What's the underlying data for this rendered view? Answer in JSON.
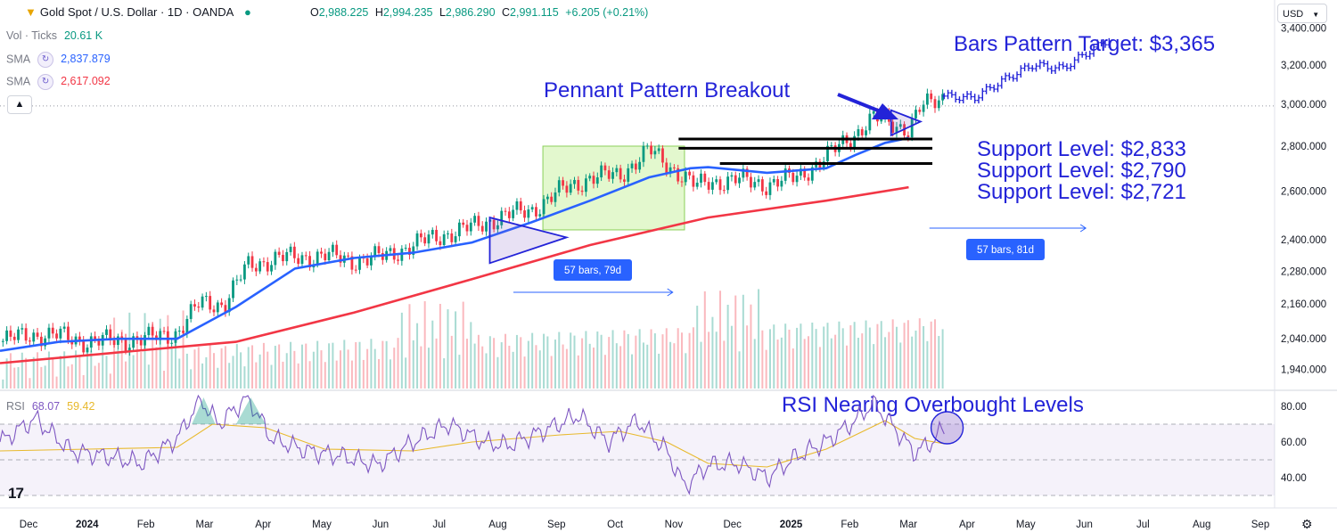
{
  "header": {
    "symbol": "Gold Spot / U.S. Dollar · 1D · OANDA",
    "open_label": "O",
    "open": "2,988.225",
    "high_label": "H",
    "high": "2,994.235",
    "low_label": "L",
    "low": "2,986.290",
    "close_label": "C",
    "close": "2,991.115",
    "change": "+6.205 (+0.21%)"
  },
  "indicators": {
    "vol_label": "Vol · Ticks",
    "vol_value": "20.61 K",
    "sma1_label": "SMA",
    "sma1_value": "2,837.879",
    "sma2_label": "SMA",
    "sma2_value": "2,617.092",
    "rsi_label": "RSI",
    "rsi_value": "68.07",
    "rsi_ma_value": "59.42"
  },
  "currency": "USD",
  "colors": {
    "up": "#089981",
    "down": "#f23645",
    "sma_fast": "#2962ff",
    "sma_slow": "#f23645",
    "annotation": "#2323d8",
    "rsi": "#7e57c2",
    "rsi_ma": "#e8b92c",
    "box": "#ccf2a6"
  },
  "chart_data": [
    {
      "type": "line",
      "title": "Gold Spot / U.S. Dollar · 1D · OANDA",
      "x_ticks": [
        "Dec",
        "2024",
        "Feb",
        "Mar",
        "Apr",
        "May",
        "Jun",
        "Jul",
        "Aug",
        "Sep",
        "Oct",
        "Nov",
        "Dec",
        "2025",
        "Feb",
        "Mar",
        "Apr",
        "May",
        "Jun",
        "Jul",
        "Aug",
        "Sep"
      ],
      "y_ticks": [
        "3,400.000",
        "3,200.000",
        "3,000.000",
        "2,800.000",
        "2,600.000",
        "2,400.000",
        "2,280.000",
        "2,160.000",
        "2,040.000",
        "1,940.000"
      ],
      "y_tick_values": [
        3400,
        3200,
        3000,
        2800,
        2600,
        2400,
        2280,
        2160,
        2040,
        1940
      ],
      "scale": "log",
      "ylim": [
        1880,
        3560
      ],
      "x_range": [
        0,
        21.6
      ],
      "price_path": [
        [
          0,
          2030
        ],
        [
          0.5,
          2055
        ],
        [
          1.0,
          2050
        ],
        [
          1.5,
          2030
        ],
        [
          2.0,
          2035
        ],
        [
          2.5,
          2040
        ],
        [
          3.0,
          2060
        ],
        [
          3.4,
          2165
        ],
        [
          3.8,
          2160
        ],
        [
          4.2,
          2300
        ],
        [
          4.7,
          2330
        ],
        [
          5.0,
          2330
        ],
        [
          5.5,
          2340
        ],
        [
          6.0,
          2320
        ],
        [
          6.5,
          2335
        ],
        [
          7.0,
          2380
        ],
        [
          7.5,
          2420
        ],
        [
          8.0,
          2450
        ],
        [
          8.5,
          2495
        ],
        [
          9.0,
          2520
        ],
        [
          9.5,
          2600
        ],
        [
          10.0,
          2660
        ],
        [
          10.5,
          2670
        ],
        [
          11.0,
          2780
        ],
        [
          11.4,
          2700
        ],
        [
          11.8,
          2620
        ],
        [
          12.0,
          2640
        ],
        [
          12.5,
          2650
        ],
        [
          13.0,
          2630
        ],
        [
          13.5,
          2660
        ],
        [
          14.0,
          2750
        ],
        [
          14.5,
          2860
        ],
        [
          14.8,
          2930
        ],
        [
          15.1,
          2910
        ],
        [
          15.4,
          2880
        ],
        [
          15.6,
          2980
        ],
        [
          16.0,
          3040
        ],
        [
          16.5,
          3030
        ],
        [
          17.0,
          3120
        ],
        [
          17.5,
          3200
        ],
        [
          18.0,
          3180
        ],
        [
          18.4,
          3260
        ],
        [
          18.8,
          3340
        ]
      ],
      "sma_fast_path": [
        [
          0,
          2000
        ],
        [
          1.0,
          2030
        ],
        [
          2.0,
          2040
        ],
        [
          3.0,
          2040
        ],
        [
          4.0,
          2150
        ],
        [
          5.0,
          2290
        ],
        [
          6.0,
          2330
        ],
        [
          7.0,
          2350
        ],
        [
          8.0,
          2390
        ],
        [
          9.0,
          2470
        ],
        [
          10.0,
          2560
        ],
        [
          11.0,
          2660
        ],
        [
          11.7,
          2700
        ],
        [
          12.0,
          2705
        ],
        [
          13.0,
          2680
        ],
        [
          14.0,
          2700
        ],
        [
          14.5,
          2760
        ],
        [
          15.0,
          2815
        ],
        [
          15.4,
          2838
        ]
      ],
      "sma_slow_path": [
        [
          0,
          1960
        ],
        [
          2.0,
          1995
        ],
        [
          4.0,
          2030
        ],
        [
          6.0,
          2130
        ],
        [
          8.0,
          2250
        ],
        [
          10.0,
          2380
        ],
        [
          12.0,
          2490
        ],
        [
          14.0,
          2560
        ],
        [
          15.4,
          2617
        ]
      ],
      "support_levels": [
        2833,
        2790,
        2721
      ],
      "annotations": {
        "target": "Bars Pattern Target: $3,365",
        "pennant": "Pennant Pattern Breakout",
        "support_1": "Support Level: $2,833",
        "support_2": "Support Level: $2,790",
        "support_3": "Support Level: $2,721",
        "rsi_note": "RSI Nearing Overbought Levels",
        "range_1": "57 bars, 79d",
        "range_2": "57 bars, 81d"
      }
    },
    {
      "type": "line",
      "title": "RSI",
      "y_ticks": [
        "80.00",
        "60.00",
        "40.00"
      ],
      "y_tick_values": [
        80,
        60,
        40
      ],
      "ylim": [
        25,
        88
      ],
      "bands": [
        70,
        50,
        30
      ],
      "rsi_path": [
        [
          0,
          60
        ],
        [
          0.6,
          73
        ],
        [
          1.2,
          55
        ],
        [
          1.8,
          52
        ],
        [
          2.4,
          48
        ],
        [
          3.0,
          62
        ],
        [
          3.4,
          84
        ],
        [
          3.7,
          70
        ],
        [
          4.2,
          85
        ],
        [
          4.6,
          62
        ],
        [
          5.2,
          55
        ],
        [
          5.8,
          52
        ],
        [
          6.4,
          47
        ],
        [
          7.0,
          60
        ],
        [
          7.6,
          70
        ],
        [
          8.2,
          60
        ],
        [
          8.6,
          58
        ],
        [
          9.2,
          66
        ],
        [
          9.8,
          75
        ],
        [
          10.3,
          60
        ],
        [
          10.8,
          72
        ],
        [
          11.3,
          55
        ],
        [
          11.6,
          35
        ],
        [
          12.0,
          47
        ],
        [
          12.5,
          48
        ],
        [
          13.0,
          40
        ],
        [
          13.5,
          52
        ],
        [
          14.0,
          60
        ],
        [
          14.5,
          72
        ],
        [
          14.8,
          82
        ],
        [
          15.1,
          70
        ],
        [
          15.3,
          62
        ],
        [
          15.5,
          54
        ],
        [
          15.8,
          60
        ],
        [
          16.0,
          68
        ]
      ],
      "rsi_ma_path": [
        [
          0,
          55
        ],
        [
          1.5,
          56
        ],
        [
          3.0,
          57
        ],
        [
          3.6,
          70
        ],
        [
          4.5,
          68
        ],
        [
          5.5,
          56
        ],
        [
          7.0,
          55
        ],
        [
          8.0,
          60
        ],
        [
          9.5,
          64
        ],
        [
          10.5,
          66
        ],
        [
          11.3,
          60
        ],
        [
          12.0,
          48
        ],
        [
          13.0,
          46
        ],
        [
          14.0,
          56
        ],
        [
          15.0,
          72
        ],
        [
          15.5,
          62
        ],
        [
          16.0,
          59
        ]
      ]
    }
  ]
}
